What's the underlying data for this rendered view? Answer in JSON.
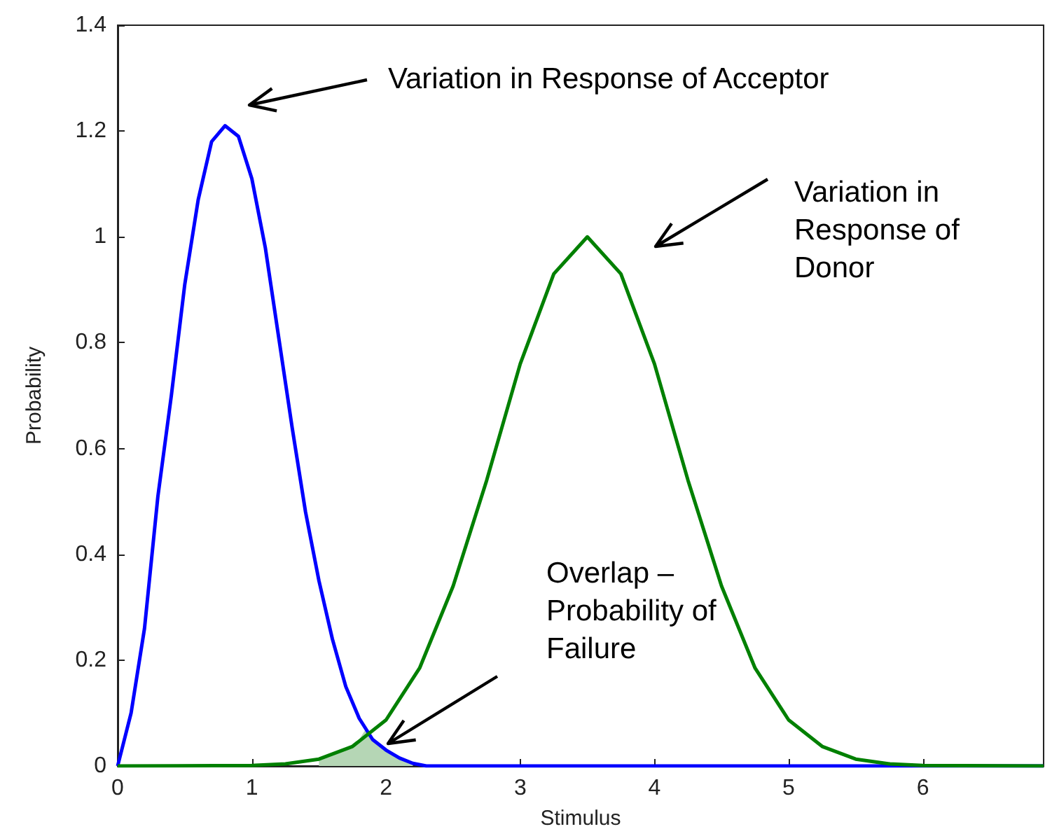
{
  "chart_data": {
    "type": "line",
    "xlabel": "Stimulus",
    "ylabel": "Probability",
    "xlim": [
      0,
      6.9
    ],
    "ylim": [
      0,
      1.4
    ],
    "xticks": [
      0,
      1,
      2,
      3,
      4,
      5,
      6
    ],
    "yticks": [
      0,
      0.2,
      0.4,
      0.6,
      0.8,
      1,
      1.2,
      1.4
    ],
    "series": [
      {
        "type": "area",
        "color": "#b5d6b5",
        "x": [
          1.5,
          1.6,
          1.7,
          1.8,
          1.85,
          1.9,
          2.0,
          2.1,
          2.2
        ],
        "values": [
          0.013,
          0.02,
          0.03,
          0.05,
          0.07,
          0.05,
          0.03,
          0.015,
          0.005
        ]
      },
      {
        "color": "#0000ff",
        "x": [
          0,
          0.1,
          0.2,
          0.3,
          0.4,
          0.5,
          0.6,
          0.7,
          0.8,
          0.9,
          1.0,
          1.1,
          1.2,
          1.3,
          1.4,
          1.5,
          1.6,
          1.7,
          1.8,
          1.9,
          2.0,
          2.1,
          2.2,
          2.3,
          2.5,
          3,
          4,
          5,
          6,
          6.9
        ],
        "values": [
          0,
          0.1,
          0.26,
          0.51,
          0.7,
          0.91,
          1.07,
          1.18,
          1.21,
          1.19,
          1.11,
          0.98,
          0.81,
          0.64,
          0.48,
          0.35,
          0.24,
          0.15,
          0.09,
          0.05,
          0.03,
          0.015,
          0.005,
          0,
          0,
          0,
          0,
          0,
          0,
          0
        ]
      },
      {
        "color": "#008000",
        "x": [
          0,
          1.0,
          1.25,
          1.5,
          1.75,
          2.0,
          2.25,
          2.5,
          2.75,
          3.0,
          3.25,
          3.5,
          3.75,
          4.0,
          4.25,
          4.5,
          4.75,
          5.0,
          5.25,
          5.5,
          5.75,
          6.0,
          6.9
        ],
        "values": [
          0,
          0.001,
          0.004,
          0.013,
          0.037,
          0.087,
          0.185,
          0.34,
          0.54,
          0.76,
          0.93,
          1.0,
          0.93,
          0.76,
          0.54,
          0.34,
          0.185,
          0.087,
          0.037,
          0.013,
          0.004,
          0.001,
          0
        ]
      }
    ],
    "annotations": [
      "Variation in Response of Acceptor",
      "Variation in Response of Donor",
      "Overlap – Probability of Failure"
    ]
  }
}
